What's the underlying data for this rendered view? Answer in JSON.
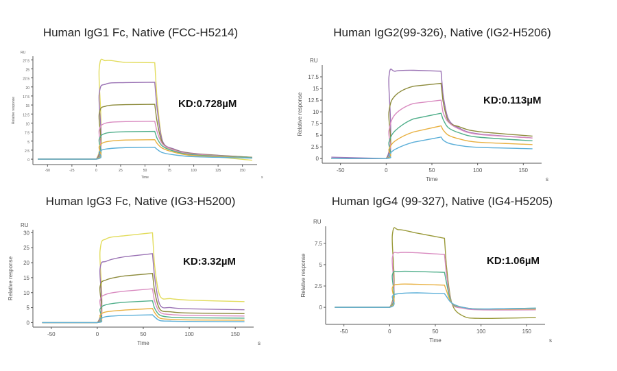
{
  "chart_data": [
    {
      "type": "line",
      "title": "Human IgG1 Fc, Native (FCC-H5214)",
      "annotation": "KD:0.728µM",
      "xlabel": "Time",
      "xunit": "s",
      "ylabel": "Relative response",
      "yunit": "RU",
      "xlim": [
        -65,
        165
      ],
      "ylim": [
        -1.5,
        28.5
      ],
      "xticks": [
        -50,
        -25,
        0,
        25,
        50,
        75,
        100,
        125,
        150
      ],
      "yticks": [
        0,
        2.5,
        5,
        7.5,
        10,
        12.5,
        15,
        17.5,
        20,
        22.5,
        25,
        27.5
      ],
      "x": [
        -60,
        0,
        3,
        10,
        30,
        60,
        62,
        68,
        80,
        100,
        160
      ],
      "series": [
        {
          "color": "#e2dc5c",
          "values": [
            0,
            0,
            25,
            27.3,
            26.8,
            26.7,
            18,
            5,
            2.5,
            1.3,
            -0.3
          ]
        },
        {
          "color": "#9a72b4",
          "values": [
            0,
            0,
            18,
            20.8,
            21.2,
            21.3,
            15,
            5,
            2.8,
            1.6,
            0.5
          ]
        },
        {
          "color": "#8c8a3a",
          "values": [
            0,
            0,
            12.5,
            14.7,
            15.1,
            15.2,
            11,
            4.5,
            2.6,
            1.5,
            0.5
          ]
        },
        {
          "color": "#d98bc0",
          "values": [
            0,
            0,
            8,
            10,
            10.4,
            10.5,
            8,
            4.2,
            2.5,
            1.4,
            0.4
          ]
        },
        {
          "color": "#4fae8a",
          "values": [
            0,
            0,
            5.5,
            7.2,
            7.6,
            7.7,
            6,
            3.6,
            2.2,
            1.2,
            0.4
          ]
        },
        {
          "color": "#e8b040",
          "values": [
            0,
            0,
            3.5,
            4.8,
            5.3,
            5.4,
            4.5,
            3,
            1.9,
            1,
            0.3
          ]
        },
        {
          "color": "#5aaed8",
          "values": [
            0,
            0,
            2,
            2.8,
            3.2,
            3.3,
            2.8,
            1.8,
            1.2,
            0.7,
            0.3
          ]
        }
      ]
    },
    {
      "type": "line",
      "title": "Human IgG2(99-326), Native (IG2-H5206)",
      "annotation": "KD:0.113µM",
      "xlabel": "Time",
      "xunit": "s",
      "ylabel": "Relative response",
      "yunit": "RU",
      "xlim": [
        -70,
        170
      ],
      "ylim": [
        -1,
        20
      ],
      "xticks": [
        -50,
        0,
        50,
        100,
        150
      ],
      "yticks": [
        0,
        2.5,
        5,
        7.5,
        10,
        12.5,
        15,
        17.5
      ],
      "x": [
        -60,
        0,
        3,
        10,
        30,
        60,
        62,
        68,
        80,
        100,
        160
      ],
      "series": [
        {
          "color": "#9a72b4",
          "values": [
            0.3,
            0,
            17.5,
            18.7,
            18.9,
            18.7,
            14,
            8.5,
            6.5,
            5.3,
            4.4
          ]
        },
        {
          "color": "#8c8a3a",
          "values": [
            0,
            0,
            10,
            13.5,
            15.5,
            16.1,
            12.5,
            8,
            6.8,
            5.8,
            4.8
          ]
        },
        {
          "color": "#d98bc0",
          "values": [
            0,
            0,
            6,
            9.5,
            11.8,
            12.5,
            10,
            7.8,
            6.3,
            5.2,
            4.4
          ]
        },
        {
          "color": "#4fae8a",
          "values": [
            0,
            0,
            3.5,
            6,
            8.5,
            9.7,
            8.5,
            6.6,
            5.5,
            4.6,
            3.8
          ]
        },
        {
          "color": "#e8b040",
          "values": [
            0,
            0,
            2,
            3.8,
            5.7,
            7,
            6.2,
            5,
            4.2,
            3.5,
            3
          ]
        },
        {
          "color": "#5aaed8",
          "values": [
            0,
            0,
            0.8,
            2,
            3.5,
            4.6,
            4,
            3.3,
            2.8,
            2.4,
            2.1
          ]
        }
      ]
    },
    {
      "type": "line",
      "title": "Human IgG3 Fc, Native (IG3-H5200)",
      "annotation": "KD:3.32µM",
      "xlabel": "Time",
      "xunit": "s",
      "ylabel": "Relative response",
      "yunit": "RU",
      "xlim": [
        -70,
        170
      ],
      "ylim": [
        -1.5,
        31
      ],
      "xticks": [
        -50,
        0,
        50,
        100,
        150
      ],
      "yticks": [
        0,
        5,
        10,
        15,
        20,
        25,
        30
      ],
      "x": [
        -60,
        0,
        3,
        10,
        30,
        60,
        62,
        68,
        80,
        100,
        160
      ],
      "series": [
        {
          "color": "#e2dc5c",
          "values": [
            0,
            0,
            24,
            28,
            29,
            30,
            20,
            9,
            8,
            7.5,
            7
          ]
        },
        {
          "color": "#9a72b4",
          "values": [
            0,
            0,
            18,
            20.5,
            22,
            23,
            16,
            6,
            5,
            4.6,
            4.3
          ]
        },
        {
          "color": "#8c8a3a",
          "values": [
            0,
            0,
            12,
            14.3,
            15.6,
            16.4,
            11,
            4.5,
            3.6,
            3.2,
            3
          ]
        },
        {
          "color": "#d98bc0",
          "values": [
            0,
            0,
            7.5,
            9.5,
            10.5,
            11.3,
            7.5,
            3.5,
            2.7,
            2.4,
            2.2
          ]
        },
        {
          "color": "#4fae8a",
          "values": [
            0,
            0,
            4.5,
            6,
            6.8,
            7.3,
            5,
            2.5,
            1.8,
            1.6,
            1.5
          ]
        },
        {
          "color": "#e8b040",
          "values": [
            0,
            0,
            2.5,
            3.6,
            4.2,
            4.7,
            3.5,
            1.5,
            1.1,
            0.9,
            0.8
          ]
        },
        {
          "color": "#5aaed8",
          "values": [
            0,
            0,
            1.2,
            2,
            2.4,
            2.6,
            2,
            0.7,
            0.5,
            0.4,
            0.3
          ]
        }
      ]
    },
    {
      "type": "line",
      "title": "Human IgG4 (99-327), Native (IG4-H5205)",
      "annotation": "KD:1.06µM",
      "xlabel": "Time",
      "xunit": "s",
      "ylabel": "Relative response",
      "yunit": "RU",
      "xlim": [
        -70,
        170
      ],
      "ylim": [
        -2,
        9.5
      ],
      "xticks": [
        -50,
        0,
        50,
        100,
        150
      ],
      "yticks": [
        0,
        2.5,
        5,
        7.5
      ],
      "x": [
        -60,
        0,
        3,
        10,
        30,
        60,
        62,
        68,
        80,
        100,
        160
      ],
      "series": [
        {
          "color": "#9a9a3a",
          "values": [
            0,
            0,
            8.5,
            9.1,
            8.7,
            8.1,
            5,
            0.5,
            -1,
            -1.3,
            -1.2
          ]
        },
        {
          "color": "#d98bc0",
          "values": [
            0,
            0,
            5.8,
            6.4,
            6.4,
            6.2,
            4,
            0.5,
            -0.1,
            -0.3,
            -0.3
          ]
        },
        {
          "color": "#4fae8a",
          "values": [
            0,
            0,
            3.8,
            4.2,
            4.2,
            4.1,
            3,
            0.5,
            0,
            -0.2,
            -0.1
          ]
        },
        {
          "color": "#e8b040",
          "values": [
            0,
            0,
            2.3,
            2.7,
            2.7,
            2.6,
            2,
            0.5,
            0,
            -0.2,
            -0.2
          ]
        },
        {
          "color": "#5aaed8",
          "values": [
            0,
            0,
            1.3,
            1.6,
            1.7,
            1.6,
            1.3,
            0.5,
            0,
            -0.2,
            -0.1
          ]
        }
      ]
    }
  ]
}
